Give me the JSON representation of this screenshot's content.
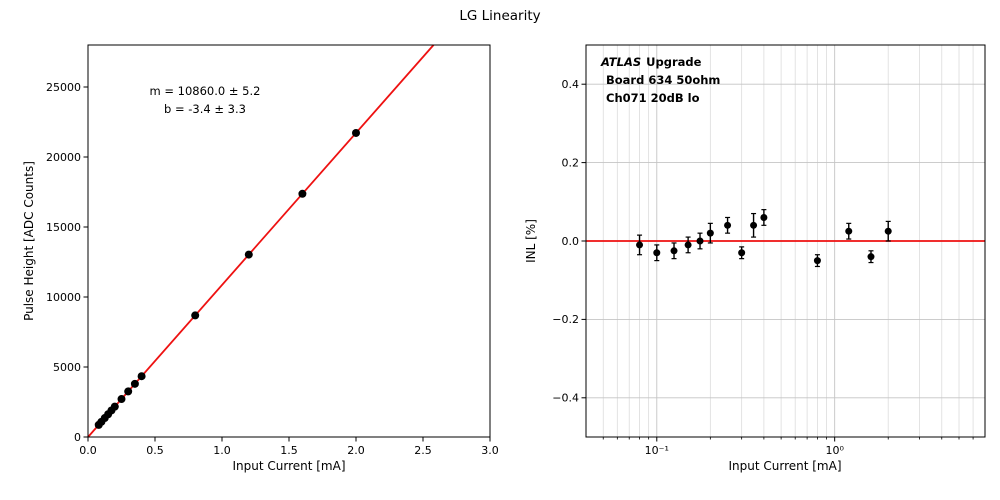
{
  "figure": {
    "title": "LG Linearity",
    "background": "#ffffff"
  },
  "chart_data": [
    {
      "name": "lg-linearity",
      "type": "scatter",
      "xlabel": "Input Current [mA]",
      "ylabel": "Pulse Height [ADC Counts]",
      "xscale": "linear",
      "xlim": [
        0.0,
        3.0
      ],
      "ylim": [
        0,
        28000
      ],
      "xticks": [
        0.0,
        0.5,
        1.0,
        1.5,
        2.0,
        2.5,
        3.0
      ],
      "xtick_labels": [
        "0.0",
        "0.5",
        "1.0",
        "1.5",
        "2.0",
        "2.5",
        "3.0"
      ],
      "yticks": [
        0,
        5000,
        10000,
        15000,
        20000,
        25000
      ],
      "ytick_labels": [
        "0",
        "5000",
        "10000",
        "15000",
        "20000",
        "25000"
      ],
      "grid": false,
      "fit": {
        "m": 10860.0,
        "m_err": 5.2,
        "b": -3.4,
        "b_err": 3.3,
        "color": "#ee1111",
        "label_lines": [
          "m = 10860.0 ± 5.2",
          "b = -3.4 ± 3.3"
        ]
      },
      "x": [
        0.08,
        0.1,
        0.125,
        0.15,
        0.175,
        0.2,
        0.25,
        0.3,
        0.35,
        0.4,
        0.8,
        1.2,
        1.6,
        2.0
      ],
      "y": [
        866,
        1083,
        1354,
        1626,
        1897,
        2169,
        2712,
        3255,
        3798,
        4341,
        8685,
        13029,
        17373,
        21717
      ],
      "marker": {
        "color": "#000000",
        "size": 4
      }
    },
    {
      "name": "inl",
      "type": "errorbar",
      "xlabel": "Input Current [mA]",
      "ylabel": "INL [%]",
      "xscale": "log",
      "xlim": [
        0.04,
        7.0
      ],
      "ylim": [
        -0.5,
        0.5
      ],
      "xticks": [
        0.1,
        1.0
      ],
      "xtick_labels": [
        "10⁻¹",
        "10⁰"
      ],
      "yticks": [
        -0.4,
        -0.2,
        0.0,
        0.2,
        0.4
      ],
      "ytick_labels": [
        "−0.4",
        "−0.2",
        "0.0",
        "0.2",
        "0.4"
      ],
      "grid": true,
      "grid_color_major": "#c4c4c4",
      "grid_color_minor": "#dcdcdc",
      "zero_line": {
        "y": 0.0,
        "color": "#ee1111"
      },
      "x": [
        0.08,
        0.1,
        0.125,
        0.15,
        0.175,
        0.2,
        0.25,
        0.3,
        0.35,
        0.4,
        0.8,
        1.2,
        1.6,
        2.0
      ],
      "y": [
        -0.01,
        -0.03,
        -0.025,
        -0.01,
        0.0,
        0.02,
        0.04,
        -0.03,
        0.04,
        0.06,
        -0.05,
        0.025,
        -0.04,
        0.025
      ],
      "yerr": [
        0.025,
        0.02,
        0.02,
        0.02,
        0.02,
        0.025,
        0.02,
        0.015,
        0.03,
        0.02,
        0.015,
        0.02,
        0.015,
        0.025
      ],
      "annotation": {
        "experiment": "ATLAS",
        "upgrade": "Upgrade",
        "board": "Board 634 50ohm",
        "channel": "Ch071 20dB lo"
      },
      "marker": {
        "color": "#000000",
        "size": 3.5
      }
    }
  ]
}
